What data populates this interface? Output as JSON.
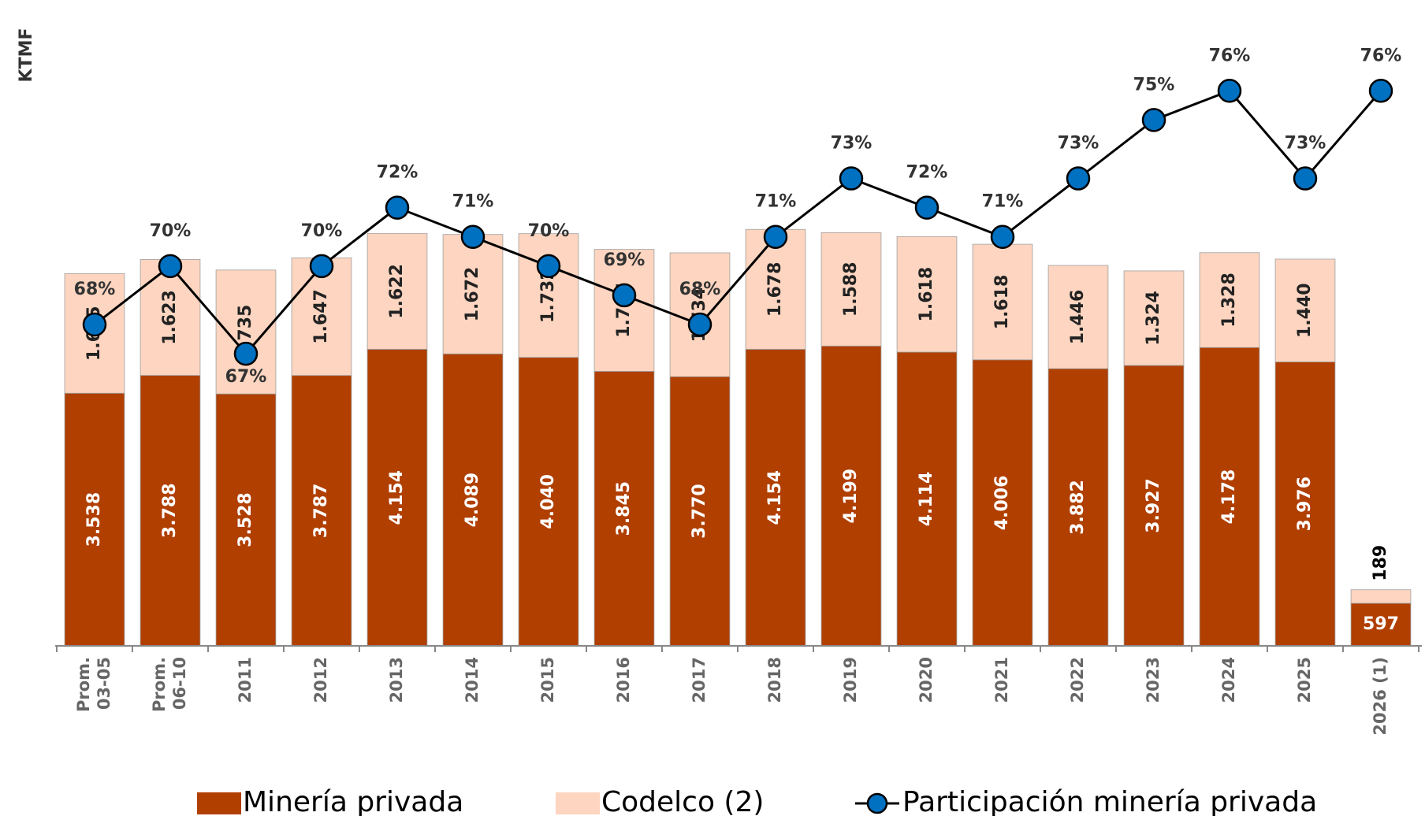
{
  "chart_data": {
    "type": "bar-line",
    "y_axis_label": "KTMF",
    "categories": [
      "Prom.\n03-05",
      "Prom.\n06-10",
      "2011",
      "2012",
      "2013",
      "2014",
      "2015",
      "2016",
      "2017",
      "2018",
      "2019",
      "2020",
      "2021",
      "2022",
      "2023",
      "2024",
      "2025",
      "2026 (1)"
    ],
    "ylim": [
      0,
      9000
    ],
    "y2lim": [
      57,
      79
    ],
    "series": [
      {
        "name": "Minería privada",
        "color": "#b03f00",
        "stack": true,
        "values": [
          3538,
          3788,
          3528,
          3787,
          4154,
          4089,
          4040,
          3845,
          3770,
          4154,
          4199,
          4114,
          4006,
          3882,
          3927,
          4178,
          3976,
          597
        ],
        "value_labels": [
          "3.538",
          "3.788",
          "3.528",
          "3.787",
          "4.154",
          "4.089",
          "4.040",
          "3.845",
          "3.770",
          "4.154",
          "4.199",
          "4.114",
          "4.006",
          "3.882",
          "3.927",
          "4.178",
          "3.976",
          "597"
        ]
      },
      {
        "name": "Codelco (2)",
        "color": "#fdd5c0",
        "stack": true,
        "values": [
          1675,
          1623,
          1735,
          1647,
          1622,
          1672,
          1732,
          1707,
          1734,
          1678,
          1588,
          1618,
          1618,
          1446,
          1324,
          1328,
          1440,
          189
        ],
        "value_labels": [
          "1.675",
          "1.623",
          "1.735",
          "1.647",
          "1.622",
          "1.672",
          "1.732",
          "1.707",
          "1.734",
          "1.678",
          "1.588",
          "1.618",
          "1.618",
          "1.446",
          "1.324",
          "1.328",
          "1.440",
          "189"
        ]
      },
      {
        "name": "Participación minería privada",
        "color": "#0070c0",
        "axis": "y2",
        "line_color": "#000000",
        "values": [
          68,
          70,
          67,
          70,
          72,
          71,
          70,
          69,
          68,
          71,
          73,
          72,
          71,
          73,
          75,
          76,
          73,
          76
        ],
        "value_labels": [
          "68%",
          "70%",
          "67%",
          "70%",
          "72%",
          "71%",
          "70%",
          "69%",
          "68%",
          "71%",
          "73%",
          "72%",
          "71%",
          "73%",
          "75%",
          "76%",
          "73%",
          "76%"
        ]
      }
    ]
  }
}
